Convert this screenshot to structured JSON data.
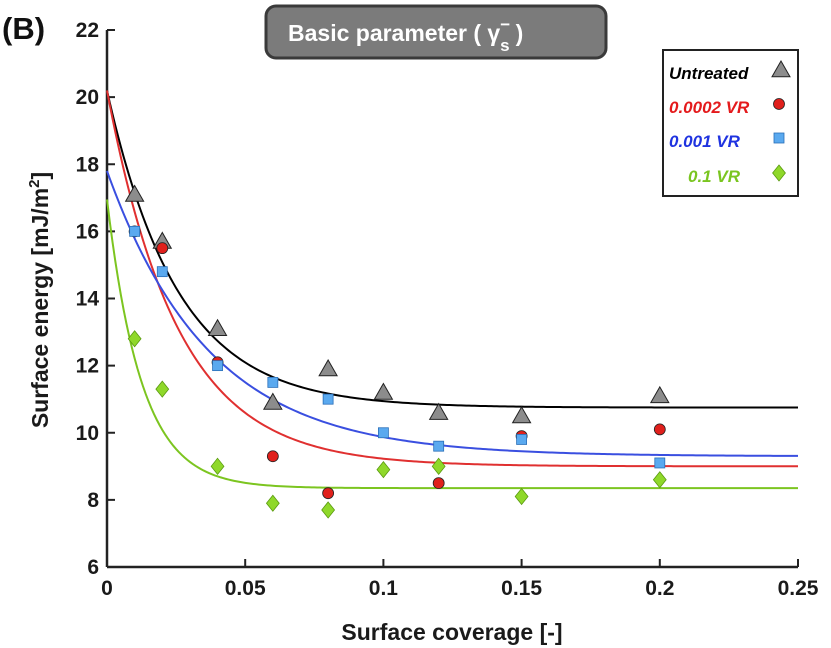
{
  "chart_data": {
    "type": "scatter",
    "panel_label": "(B)",
    "title": "Basic parameter ( γ",
    "title_sub": "s",
    "title_sup": "−",
    "title_end": ")",
    "xlabel": "Surface coverage [-]",
    "ylabel": "Surface energy [mJ/m",
    "ylabel_sup": "2",
    "ylabel_end": "]",
    "xlim": [
      0,
      0.25
    ],
    "ylim": [
      6,
      22
    ],
    "x_ticks": [
      0,
      0.05,
      0.1,
      0.15,
      0.2,
      0.25
    ],
    "x_tick_labels": [
      "0",
      "0.05",
      "0.1",
      "0.15",
      "0.2",
      "0.25"
    ],
    "y_ticks": [
      6,
      8,
      10,
      12,
      14,
      16,
      18,
      20,
      22
    ],
    "y_tick_labels": [
      "6",
      "8",
      "10",
      "12",
      "14",
      "16",
      "18",
      "20",
      "22"
    ],
    "grid": false,
    "legend_position": "top-right",
    "series": [
      {
        "name": "Untreated",
        "marker": "triangle",
        "color": "#8c8c8c",
        "text_color": "#000000",
        "line_color": "#000000",
        "x": [
          0.01,
          0.02,
          0.04,
          0.06,
          0.08,
          0.1,
          0.12,
          0.15,
          0.2
        ],
        "y": [
          17.1,
          15.7,
          13.1,
          10.9,
          11.9,
          11.2,
          10.6,
          10.5,
          11.1
        ],
        "fit": {
          "a": 10.75,
          "b": 9.45,
          "c": 39
        }
      },
      {
        "name": "0.0002 VR",
        "marker": "circle",
        "color": "#e0201c",
        "text_color": "#e41a1c",
        "line_color": "#e03030",
        "x": [
          0.01,
          0.02,
          0.04,
          0.06,
          0.08,
          0.12,
          0.15,
          0.2
        ],
        "y": [
          16.0,
          15.5,
          12.1,
          9.3,
          8.2,
          8.5,
          9.9,
          10.1
        ],
        "fit": {
          "a": 9.0,
          "b": 11.2,
          "c": 39
        }
      },
      {
        "name": "0.001 VR",
        "marker": "square",
        "color": "#5aa9ef",
        "text_color": "#1f33e0",
        "line_color": "#3a4fe0",
        "x": [
          0.01,
          0.02,
          0.04,
          0.06,
          0.08,
          0.1,
          0.12,
          0.15,
          0.2
        ],
        "y": [
          16.0,
          14.8,
          12.0,
          11.5,
          11.0,
          10.0,
          9.6,
          9.8,
          9.1
        ],
        "fit": {
          "a": 9.3,
          "b": 8.5,
          "c": 27
        }
      },
      {
        "name": "0.1 VR",
        "marker": "diamond",
        "color": "#8fd82a",
        "text_color": "#7ac520",
        "line_color": "#7cc520",
        "x": [
          0.01,
          0.02,
          0.04,
          0.06,
          0.08,
          0.1,
          0.12,
          0.15,
          0.2
        ],
        "y": [
          12.8,
          11.3,
          9.0,
          7.9,
          7.7,
          8.9,
          9.0,
          8.1,
          8.6
        ],
        "fit": {
          "a": 8.35,
          "b": 8.6,
          "c": 80
        }
      }
    ]
  }
}
